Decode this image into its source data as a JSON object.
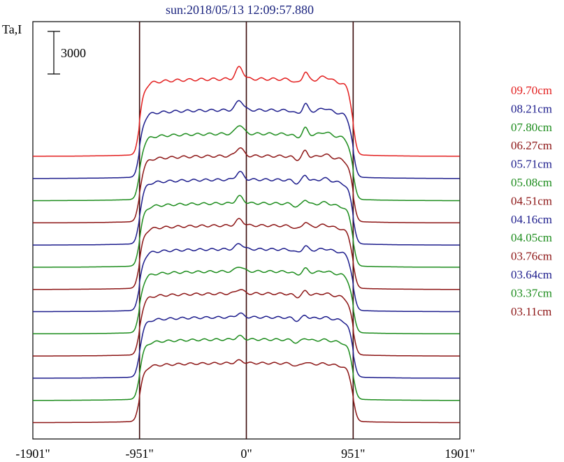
{
  "chart_data": {
    "type": "line",
    "title": "sun:2018/05/13 12:09:57.880",
    "ylabel": "Ta,I",
    "xlim": [
      -1901,
      1901
    ],
    "x_ticks": [
      {
        "value": -1901,
        "label": "-1901\""
      },
      {
        "value": -951,
        "label": "-951\""
      },
      {
        "value": 0,
        "label": "0\""
      },
      {
        "value": 951,
        "label": "951\""
      },
      {
        "value": 1901,
        "label": "1901\""
      }
    ],
    "vertical_markers": [
      -951,
      0,
      951
    ],
    "scale_bar": {
      "value": 3000,
      "label": "3000"
    },
    "stacked_offsets": true,
    "grid": false,
    "legend_position": "right",
    "series": [
      {
        "name": "09.70cm",
        "color": "#e31e1e",
        "base": 0,
        "peak": 5200
      },
      {
        "name": "08.21cm",
        "color": "#1c1c8c",
        "base": 0,
        "peak": 4600
      },
      {
        "name": "07.80cm",
        "color": "#1c8c1c",
        "base": 0,
        "peak": 4500
      },
      {
        "name": "06.27cm",
        "color": "#8c1414",
        "base": 0,
        "peak": 4500
      },
      {
        "name": "05.71cm",
        "color": "#1c1c8c",
        "base": 0,
        "peak": 4400
      },
      {
        "name": "05.08cm",
        "color": "#1c8c1c",
        "base": 0,
        "peak": 4300
      },
      {
        "name": "04.51cm",
        "color": "#8c1414",
        "base": 0,
        "peak": 4300
      },
      {
        "name": "04.16cm",
        "color": "#1c1c8c",
        "base": 0,
        "peak": 4200
      },
      {
        "name": "04.05cm",
        "color": "#1c8c1c",
        "base": 0,
        "peak": 4200
      },
      {
        "name": "03.76cm",
        "color": "#8c1414",
        "base": 0,
        "peak": 4200
      },
      {
        "name": "03.64cm",
        "color": "#1c1c8c",
        "base": 0,
        "peak": 4100
      },
      {
        "name": "03.37cm",
        "color": "#1c8c1c",
        "base": 0,
        "peak": 4100
      },
      {
        "name": "03.11cm",
        "color": "#8c1414",
        "base": 0,
        "peak": 4000
      }
    ]
  }
}
